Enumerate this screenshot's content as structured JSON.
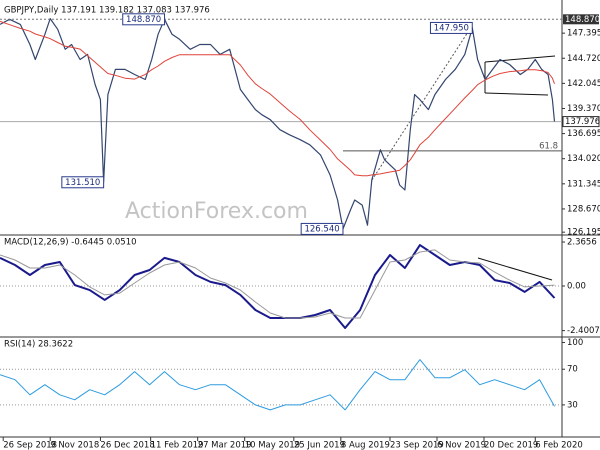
{
  "chart_data": [
    {
      "type": "line",
      "title": "GBPJPY,Daily  137.191 139.182 137.083 137.976",
      "watermark": "ActionForex.com",
      "xlim": [
        "2018-09-23",
        "2020-03-02"
      ],
      "ylim": [
        126.0,
        150.5
      ],
      "yticks": [
        147.395,
        {
          "value": 144.72,
          "label": "144.720"
        },
        142.045,
        {
          "value": 139.37,
          "label": "139.370"
        },
        136.695,
        {
          "value": 134.02,
          "label": "134.020"
        },
        131.345,
        {
          "value": 128.67,
          "label": "128.670"
        },
        126.195
      ],
      "x": [
        "2018-09-23",
        "2018-10-02",
        "2018-10-12",
        "2018-10-21",
        "2018-10-26",
        "2018-11-04",
        "2018-11-09",
        "2018-11-16",
        "2018-11-23",
        "2018-11-29",
        "2018-12-07",
        "2018-12-14",
        "2018-12-21",
        "2018-12-26",
        "2018-12-29",
        "2019-01-02",
        "2019-01-09",
        "2019-01-18",
        "2019-01-27",
        "2019-02-06",
        "2019-02-12",
        "2019-02-18",
        "2019-02-24",
        "2019-03-03",
        "2019-03-10",
        "2019-03-20",
        "2019-03-29",
        "2019-04-08",
        "2019-04-17",
        "2019-04-26",
        "2019-05-06",
        "2019-05-13",
        "2019-05-20",
        "2019-05-26",
        "2019-06-03",
        "2019-06-12",
        "2019-06-21",
        "2019-07-01",
        "2019-07-10",
        "2019-07-20",
        "2019-07-29",
        "2019-08-05",
        "2019-08-10",
        "2019-08-17",
        "2019-08-21",
        "2019-08-28",
        "2019-09-02",
        "2019-09-06",
        "2019-09-14",
        "2019-09-18",
        "2019-09-23",
        "2019-09-28",
        "2019-10-02",
        "2019-10-07",
        "2019-10-12",
        "2019-10-16",
        "2019-10-21",
        "2019-10-29",
        "2019-11-04",
        "2019-11-14",
        "2019-11-23",
        "2019-12-02",
        "2019-12-09",
        "2019-12-14",
        "2019-12-21",
        "2019-12-28",
        "2020-01-04",
        "2020-01-13",
        "2020-01-23",
        "2020-01-30",
        "2020-02-06",
        "2020-02-12",
        "2020-02-18",
        "2020-02-22",
        "2020-02-24"
      ],
      "series": [
        {
          "color": "#34466e",
          "width": 1.2,
          "values": [
            148.33,
            148.87,
            148.33,
            146.19,
            144.59,
            147.27,
            148.95,
            147.81,
            145.67,
            146.19,
            144.59,
            145.13,
            141.92,
            140.32,
            131.51,
            140.85,
            143.53,
            143.53,
            142.99,
            142.46,
            144.59,
            147.27,
            148.87,
            147.27,
            146.74,
            145.67,
            146.19,
            146.19,
            145.13,
            145.67,
            141.39,
            140.32,
            139.25,
            138.71,
            138.18,
            137.11,
            136.57,
            136.04,
            135.5,
            134.43,
            132.29,
            129.62,
            126.54,
            128.55,
            129.62,
            129.08,
            126.94,
            131.76,
            134.97,
            133.9,
            133.36,
            132.83,
            131.22,
            130.69,
            137.11,
            140.85,
            140.32,
            139.25,
            140.85,
            142.46,
            143.53,
            145.13,
            147.95,
            144.59,
            142.46,
            143.53,
            144.59,
            144.06,
            142.99,
            143.53,
            144.59,
            143.53,
            142.99,
            140.32,
            137.976
          ]
        },
        {
          "color": "#e0443a",
          "width": 1,
          "values": [
            148.66,
            148.3,
            147.9,
            147.6,
            147.3,
            147.0,
            146.8,
            146.4,
            146.0,
            145.9,
            145.7,
            145.0,
            144.3,
            143.8,
            143.5,
            143.1,
            142.9,
            142.6,
            142.5,
            143.0,
            143.5,
            143.9,
            144.4,
            144.8,
            145.1,
            145.1,
            145.1,
            145.1,
            145.1,
            145.1,
            144.0,
            142.9,
            142.0,
            141.5,
            140.9,
            140.0,
            139.1,
            138.2,
            137.1,
            136.0,
            135.0,
            134.0,
            133.5,
            132.8,
            132.3,
            132.2,
            132.2,
            132.3,
            132.4,
            132.5,
            132.6,
            132.7,
            132.8,
            133.3,
            133.9,
            134.6,
            135.5,
            136.3,
            137.1,
            138.3,
            139.4,
            140.5,
            141.3,
            141.9,
            142.4,
            142.8,
            143.1,
            143.3,
            143.4,
            143.5,
            143.5,
            143.4,
            143.2,
            142.6,
            142.0
          ]
        }
      ],
      "levels": [
        {
          "value": 148.87,
          "label": "148.870"
        }
      ],
      "last_price": 137.976,
      "annotations": [
        {
          "label": "148.870",
          "value": 148.87,
          "date": "2019-02-24"
        },
        {
          "label": "131.510",
          "value": 131.51,
          "date": "2018-12-29"
        },
        {
          "label": "147.950",
          "value": 147.95,
          "date": "2019-12-09"
        },
        {
          "label": "126.540",
          "value": 126.54,
          "date": "2019-08-10"
        }
      ],
      "retracement": {
        "label": "61.8",
        "value": 134.86,
        "from": "2019-08-10"
      }
    },
    {
      "type": "line",
      "title": "MACD(12,26,9) -0.6445 0.0510",
      "xlim": [
        "2018-09-23",
        "2020-03-02"
      ],
      "ylim": [
        -2.69,
        2.69
      ],
      "yticks": [
        2.3656,
        {
          "value": 0,
          "label": "0.00"
        },
        -2.4007
      ],
      "reference_lines": [
        0
      ],
      "x": [
        "2018-09-23",
        "2018-10-07",
        "2018-10-21",
        "2018-11-04",
        "2018-11-18",
        "2018-12-02",
        "2018-12-16",
        "2018-12-30",
        "2019-01-13",
        "2019-01-27",
        "2019-02-10",
        "2019-02-24",
        "2019-03-10",
        "2019-03-25",
        "2019-04-08",
        "2019-04-22",
        "2019-05-06",
        "2019-05-20",
        "2019-06-03",
        "2019-06-17",
        "2019-07-01",
        "2019-07-15",
        "2019-07-29",
        "2019-08-12",
        "2019-08-26",
        "2019-09-09",
        "2019-09-23",
        "2019-10-07",
        "2019-10-21",
        "2019-11-04",
        "2019-11-18",
        "2019-12-02",
        "2019-12-16",
        "2019-12-30",
        "2020-01-13",
        "2020-01-27",
        "2020-02-10",
        "2020-02-24"
      ],
      "series": [
        {
          "color": "#1a1a8c",
          "width": 2,
          "values": [
            1.51,
            1.13,
            0.59,
            1.13,
            1.29,
            0.05,
            -0.22,
            -0.75,
            -0.22,
            0.59,
            0.86,
            1.51,
            1.29,
            0.59,
            0.22,
            0.05,
            -0.48,
            -1.29,
            -1.72,
            -1.72,
            -1.72,
            -1.56,
            -1.29,
            -2.26,
            -1.29,
            0.59,
            1.67,
            0.97,
            2.2,
            1.67,
            1.13,
            1.29,
            1.13,
            0.32,
            0.16,
            -0.32,
            0.22,
            -0.6445
          ]
        },
        {
          "color": "#999999",
          "width": 1,
          "values": [
            1.67,
            1.4,
            0.97,
            0.97,
            1.13,
            0.59,
            -0.05,
            -0.48,
            -0.38,
            0.16,
            0.7,
            1.13,
            1.29,
            0.97,
            0.43,
            0.16,
            -0.22,
            -0.86,
            -1.45,
            -1.72,
            -1.72,
            -1.67,
            -1.45,
            -1.72,
            -1.72,
            -0.22,
            1.29,
            1.4,
            1.83,
            1.94,
            1.4,
            1.29,
            1.24,
            0.75,
            0.32,
            -0.05,
            0,
            0.051
          ]
        }
      ]
    },
    {
      "type": "line",
      "title": "RSI(14) 28.3622",
      "xlim": [
        "2018-09-23",
        "2020-03-02"
      ],
      "ylim": [
        -6,
        105
      ],
      "yticks": [
        100,
        70,
        30
      ],
      "reference_lines": [
        70,
        30
      ],
      "xticks": [
        {
          "value": "2018-09-26",
          "label": "26 Sep 2018"
        },
        {
          "value": "2018-11-09",
          "label": "9 Nov 2018"
        },
        {
          "value": "2018-12-26",
          "label": "26 Dec 2018"
        },
        {
          "value": "2019-02-11",
          "label": "11 Feb 2019"
        },
        {
          "value": "2019-03-27",
          "label": "27 Mar 2019"
        },
        {
          "value": "2019-05-10",
          "label": "10 May 2019"
        },
        {
          "value": "2019-06-25",
          "label": "25 Jun 2019"
        },
        {
          "value": "2019-08-08",
          "label": "8 Aug 2019"
        },
        {
          "value": "2019-09-23",
          "label": "23 Sep 2019"
        },
        {
          "value": "2019-11-06",
          "label": "6 Nov 2019"
        },
        {
          "value": "2019-12-20",
          "label": "20 Dec 2019"
        },
        {
          "value": "2020-02-06",
          "label": "6 Feb 2020"
        }
      ],
      "x": [
        "2018-09-23",
        "2018-10-07",
        "2018-10-21",
        "2018-11-04",
        "2018-11-18",
        "2018-12-02",
        "2018-12-16",
        "2018-12-30",
        "2019-01-13",
        "2019-01-27",
        "2019-02-10",
        "2019-02-24",
        "2019-03-10",
        "2019-03-25",
        "2019-04-08",
        "2019-04-22",
        "2019-05-06",
        "2019-05-20",
        "2019-06-03",
        "2019-06-17",
        "2019-07-01",
        "2019-07-15",
        "2019-07-29",
        "2019-08-12",
        "2019-08-26",
        "2019-09-09",
        "2019-09-23",
        "2019-10-07",
        "2019-10-21",
        "2019-11-04",
        "2019-11-18",
        "2019-12-02",
        "2019-12-16",
        "2019-12-30",
        "2020-01-13",
        "2020-01-27",
        "2020-02-10",
        "2020-02-24"
      ],
      "series": [
        {
          "color": "#2d9be0",
          "width": 1,
          "values": [
            63.9,
            58.2,
            41.3,
            52.6,
            41.3,
            35.7,
            47.0,
            41.3,
            52.6,
            67.3,
            52.6,
            67.3,
            52.6,
            47.0,
            52.6,
            52.6,
            41.3,
            30.0,
            24.4,
            30.0,
            30.0,
            35.7,
            41.3,
            24.4,
            47.0,
            67.3,
            58.2,
            58.2,
            80.8,
            60.5,
            60.5,
            69.5,
            52.6,
            58.2,
            52.6,
            47.0,
            58.2,
            28.3622
          ]
        }
      ]
    }
  ]
}
